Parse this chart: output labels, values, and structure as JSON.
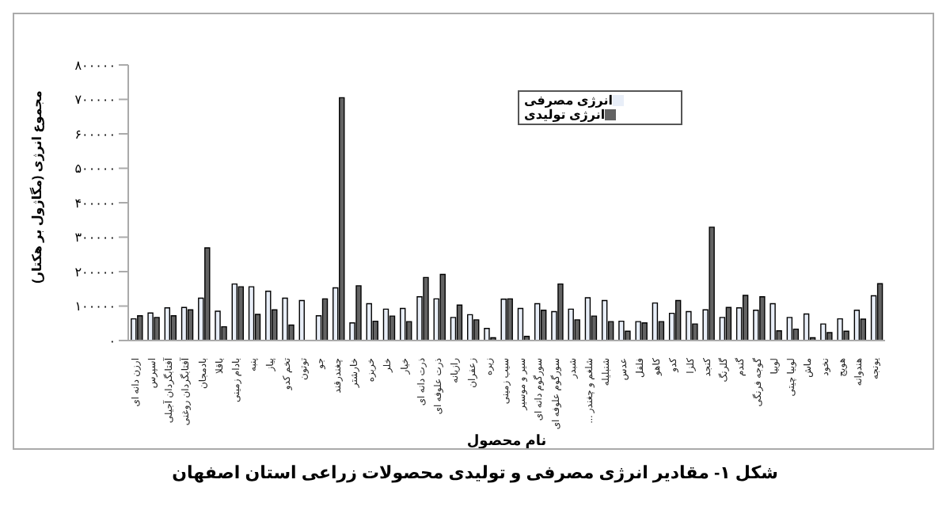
{
  "chart_data": {
    "type": "bar",
    "title": "شکل ۱- مقادیر انرژی مصرفی و تولیدی محصولات زراعی استان اصفهان",
    "xlabel": "نام محصول",
    "ylabel": "مجموع انرژی (مگاژول بر هکتار)",
    "categories": [
      "ارزن دانه ای",
      "اسپرس",
      "آفتابگردان آجیلی",
      "آفتابگردان روغنی",
      "بادمجان",
      "باقلا",
      "بادام زمینی",
      "پنبه",
      "پیاز",
      "تخم کدو",
      "توتون",
      "جو",
      "چغندرقند",
      "خارشتر",
      "خربزه",
      "خلر",
      "خیار",
      "ذرت دانه ای",
      "ذرت علوفه ای",
      "رازیانه",
      "زعفران",
      "زیره",
      "سیب زمینی",
      "سیر و موسیر",
      "سورگوم دانه ای",
      "سورگوم علوفه ای",
      "شبدر",
      "شلغم و چغندر ...",
      "شنبلیله",
      "عدس",
      "فلفل",
      "کاهو",
      "کدو",
      "کلزا",
      "کنجد",
      "گلرنگ",
      "گندم",
      "گوجه فرنگی",
      "لوبیا",
      "لوبیا چیتی",
      "ماش",
      "نخود",
      "هویج",
      "هندوانه",
      "یونجه"
    ],
    "series": [
      {
        "name": "انرژی مصرفی",
        "color": "#e8eef8",
        "values": [
          63000,
          80000,
          95000,
          96000,
          123000,
          85000,
          164000,
          156000,
          143000,
          123000,
          116000,
          72000,
          153000,
          51000,
          107000,
          91000,
          93000,
          127000,
          121000,
          67000,
          75000,
          35000,
          120000,
          93000,
          107000,
          84000,
          91000,
          124000,
          116000,
          56000,
          55000,
          109000,
          79000,
          84000,
          89000,
          67000,
          95000,
          88000,
          107000,
          67000,
          77000,
          48000,
          63000,
          88000,
          130000
        ]
      },
      {
        "name": "انرژی تولیدی",
        "color": "#636363",
        "values": [
          72000,
          67000,
          72000,
          89000,
          269000,
          40000,
          156000,
          76000,
          89000,
          45000,
          0,
          121000,
          705000,
          159000,
          56000,
          71000,
          55000,
          183000,
          192000,
          103000,
          60000,
          8000,
          121000,
          12000,
          88000,
          164000,
          60000,
          71000,
          55000,
          27000,
          51000,
          55000,
          116000,
          48000,
          329000,
          96000,
          131000,
          127000,
          28000,
          33000,
          8000,
          23000,
          27000,
          62000,
          165000
        ]
      }
    ],
    "ylim": [
      0,
      800000
    ],
    "yticks": [
      {
        "value": 0,
        "label": "۰"
      },
      {
        "value": 100000,
        "label": "۱۰۰۰۰۰"
      },
      {
        "value": 200000,
        "label": "۲۰۰۰۰۰"
      },
      {
        "value": 300000,
        "label": "۳۰۰۰۰۰"
      },
      {
        "value": 400000,
        "label": "۴۰۰۰۰۰"
      },
      {
        "value": 500000,
        "label": "۵۰۰۰۰۰"
      },
      {
        "value": 600000,
        "label": "۶۰۰۰۰۰"
      },
      {
        "value": 700000,
        "label": "۷۰۰۰۰۰"
      },
      {
        "value": 800000,
        "label": "۸۰۰۰۰۰"
      }
    ],
    "grid": false,
    "legend": "top"
  }
}
